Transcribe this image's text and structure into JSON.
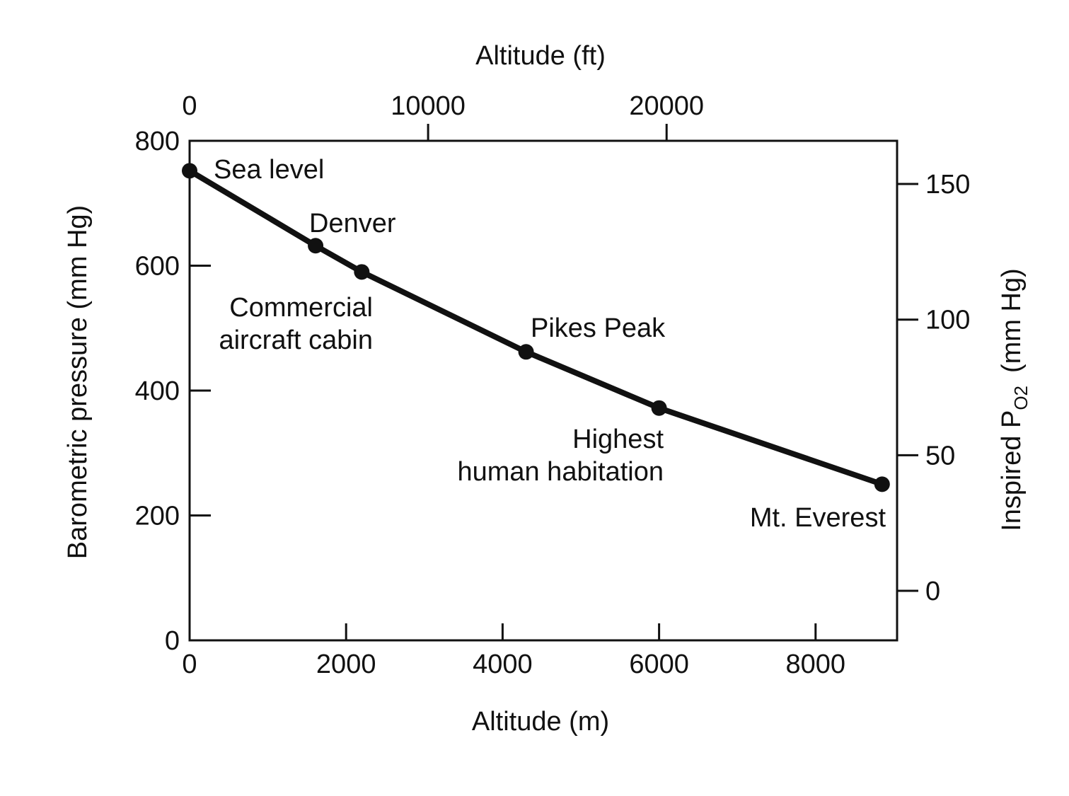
{
  "chart_data": {
    "type": "line",
    "x_unit": "m",
    "xlabel": "Altitude (m)",
    "ylabel": "Barometric pressure (mm Hg)",
    "top_xlabel": "Altitude (ft)",
    "right_ylabel_main": "Inspired P",
    "right_ylabel_sub": "O2",
    "right_ylabel_unit": "(mm Hg)",
    "xlim": [
      0,
      9000
    ],
    "ylim": [
      0,
      800
    ],
    "x_ticks": [
      0,
      2000,
      4000,
      6000,
      8000
    ],
    "y_ticks": [
      0,
      200,
      400,
      600,
      800
    ],
    "top_x_ticks": [
      0,
      10000,
      20000
    ],
    "right_y_ticks": [
      0,
      50,
      100,
      150
    ],
    "series": [
      {
        "points": [
          {
            "x": 0,
            "y": 752
          },
          {
            "x": 1610,
            "y": 632
          },
          {
            "x": 2200,
            "y": 590
          },
          {
            "x": 4300,
            "y": 462
          },
          {
            "x": 6000,
            "y": 372
          },
          {
            "x": 8850,
            "y": 250
          }
        ]
      }
    ],
    "annotations": [
      {
        "lines": [
          "Sea level"
        ]
      },
      {
        "lines": [
          "Denver"
        ]
      },
      {
        "lines": [
          "Commercial",
          "aircraft cabin"
        ]
      },
      {
        "lines": [
          "Pikes Peak"
        ]
      },
      {
        "lines": [
          "Highest",
          "human habitation"
        ]
      },
      {
        "lines": [
          "Mt. Everest"
        ]
      }
    ],
    "grid": false,
    "legend": "none"
  }
}
